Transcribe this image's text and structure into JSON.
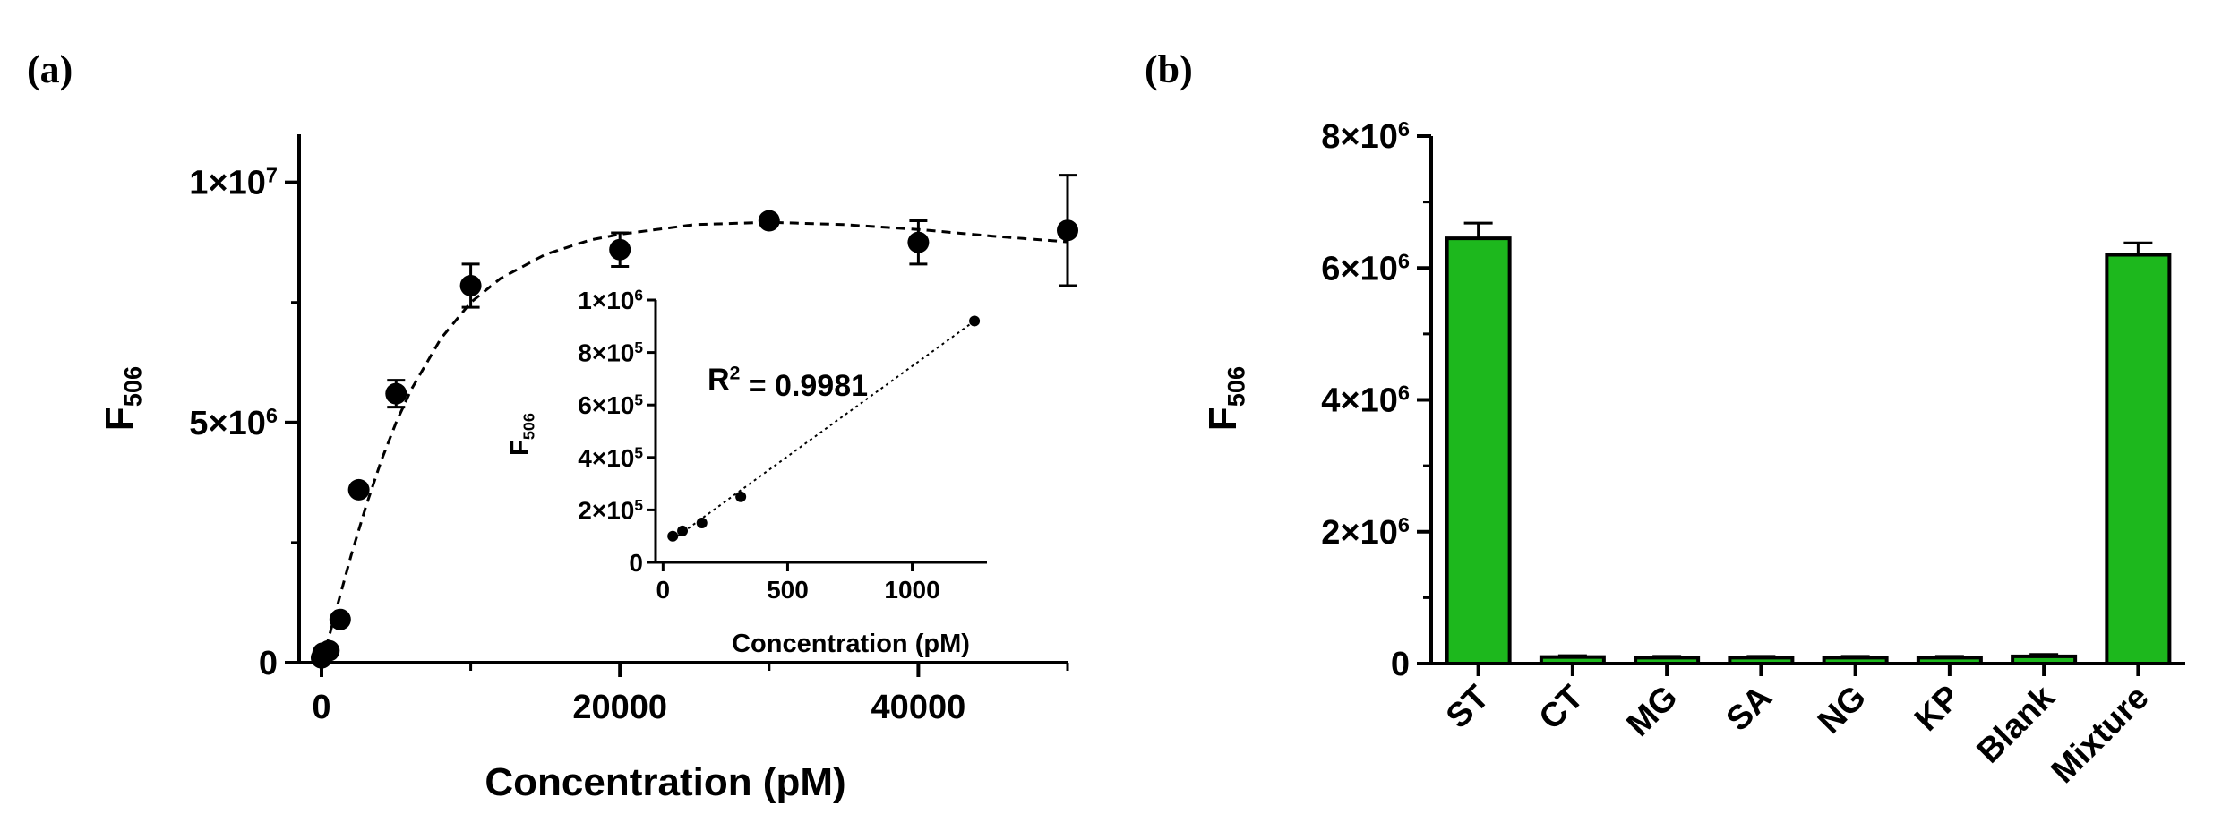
{
  "figure": {
    "panel_a_label": "(a)",
    "panel_b_label": "(b)"
  },
  "chart_data": [
    {
      "id": "a_main",
      "type": "scatter",
      "title": "",
      "xlabel": "Concentration (pM)",
      "ylabel_base": "F",
      "ylabel_sub": "506",
      "xlim": [
        -1500,
        50000
      ],
      "ylim": [
        0,
        11000000
      ],
      "x_ticks": [
        0,
        20000,
        40000
      ],
      "x_tick_labels": [
        "0",
        "20000",
        "40000"
      ],
      "x_minor_ticks": [
        10000,
        30000,
        50000
      ],
      "y_ticks": [
        {
          "value": 0,
          "base": "0",
          "exp": ""
        },
        {
          "value": 5000000,
          "base": "5×10",
          "exp": "6"
        },
        {
          "value": 10000000,
          "base": "1×10",
          "exp": "7"
        }
      ],
      "y_minor_ticks": [
        2500000,
        7500000
      ],
      "series": [
        {
          "name": "data",
          "x": [
            0,
            100,
            500,
            1250,
            2500,
            5000,
            10000,
            20000,
            30000,
            40000,
            50000
          ],
          "y": [
            100000,
            200000,
            250000,
            900000,
            3600000,
            5600000,
            7850000,
            8600000,
            9200000,
            8750000,
            9000000
          ],
          "err": [
            0,
            0,
            0,
            0,
            0,
            280000,
            450000,
            350000,
            0,
            450000,
            1150000
          ]
        }
      ],
      "fit": {
        "style": "dashed",
        "x": [
          0,
          500,
          1000,
          2000,
          3000,
          4000,
          5000,
          6000,
          8000,
          10000,
          12000,
          15000,
          18000,
          20000,
          25000,
          30000,
          35000,
          40000,
          45000,
          50000
        ],
        "y": [
          0,
          530000,
          1120000,
          2250000,
          3280000,
          4200000,
          5000000,
          5680000,
          6750000,
          7500000,
          8000000,
          8500000,
          8800000,
          8920000,
          9120000,
          9170000,
          9120000,
          9020000,
          8880000,
          8760000
        ]
      }
    },
    {
      "id": "a_inset",
      "type": "scatter",
      "title": "",
      "xlabel": "Concentration (pM)",
      "ylabel_base": "F",
      "ylabel_sub": "506",
      "annotation": {
        "base": "R",
        "exp": "2",
        "rest": " = 0.9981"
      },
      "xlim": [
        -30,
        1300
      ],
      "ylim": [
        0,
        1000000
      ],
      "x_ticks": [
        0,
        500,
        1000
      ],
      "x_tick_labels": [
        "0",
        "500",
        "1000"
      ],
      "y_ticks": [
        {
          "value": 0,
          "base": "0",
          "exp": ""
        },
        {
          "value": 200000,
          "base": "2×10",
          "exp": "5"
        },
        {
          "value": 400000,
          "base": "4×10",
          "exp": "5"
        },
        {
          "value": 600000,
          "base": "6×10",
          "exp": "5"
        },
        {
          "value": 800000,
          "base": "8×10",
          "exp": "5"
        },
        {
          "value": 1000000,
          "base": "1×10",
          "exp": "6"
        }
      ],
      "series": [
        {
          "name": "data",
          "x": [
            39,
            78,
            156,
            312,
            1250
          ],
          "y": [
            100000,
            120000,
            150000,
            250000,
            920000
          ]
        }
      ],
      "fit": {
        "style": "dotted",
        "x": [
          39,
          1250
        ],
        "y": [
          87000,
          920000
        ]
      }
    },
    {
      "id": "b_bar",
      "type": "bar",
      "title": "",
      "xlabel": "",
      "ylabel_base": "F",
      "ylabel_sub": "506",
      "ylim": [
        0,
        8000000
      ],
      "y_ticks": [
        {
          "value": 0,
          "base": "0",
          "exp": ""
        },
        {
          "value": 2000000,
          "base": "2×10",
          "exp": "6"
        },
        {
          "value": 4000000,
          "base": "4×10",
          "exp": "6"
        },
        {
          "value": 6000000,
          "base": "6×10",
          "exp": "6"
        },
        {
          "value": 8000000,
          "base": "8×10",
          "exp": "6"
        }
      ],
      "y_minor_ticks": [
        1000000,
        3000000,
        5000000,
        7000000
      ],
      "bar_color": "#1DB81D",
      "categories": [
        "ST",
        "CT",
        "MG",
        "SA",
        "NG",
        "KP",
        "Blank",
        "Mixture"
      ],
      "values": [
        6450000,
        100000,
        90000,
        90000,
        90000,
        90000,
        110000,
        6200000
      ],
      "err": [
        230000,
        20000,
        20000,
        20000,
        20000,
        20000,
        30000,
        180000
      ]
    }
  ]
}
